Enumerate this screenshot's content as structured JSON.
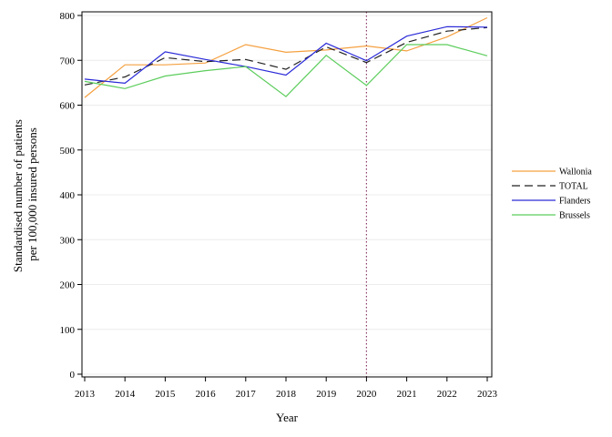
{
  "chart_data": {
    "type": "line",
    "xlabel": "Year",
    "ylabel_lines": [
      "Standardised number of patients",
      "per 100,000 insured persons"
    ],
    "x": [
      "2013",
      "2014",
      "2015",
      "2016",
      "2017",
      "2018",
      "2019",
      "2020",
      "2021",
      "2022",
      "2023"
    ],
    "ylim": [
      0,
      800
    ],
    "yticks": [
      "0",
      "100",
      "200",
      "300",
      "400",
      "500",
      "600",
      "700",
      "800"
    ],
    "grid": "horizontal",
    "reference_line_x": "2020",
    "legend_position": "right",
    "series": [
      {
        "name": "Wallonia",
        "color": "#f5a040",
        "dash": "solid",
        "values": [
          617,
          690,
          690,
          694,
          735,
          718,
          723,
          732,
          721,
          752,
          795
        ]
      },
      {
        "name": "TOTAL",
        "color": "#222222",
        "dash": "dashed",
        "values": [
          645,
          663,
          706,
          697,
          702,
          680,
          730,
          695,
          740,
          765,
          773
        ]
      },
      {
        "name": "Flanders",
        "color": "#2a2ad8",
        "dash": "solid",
        "values": [
          658,
          649,
          719,
          702,
          686,
          667,
          738,
          699,
          754,
          775,
          774
        ]
      },
      {
        "name": "Brussels",
        "color": "#5ccd5c",
        "dash": "solid",
        "values": [
          653,
          637,
          665,
          677,
          686,
          619,
          711,
          644,
          735,
          735,
          710
        ]
      }
    ]
  }
}
